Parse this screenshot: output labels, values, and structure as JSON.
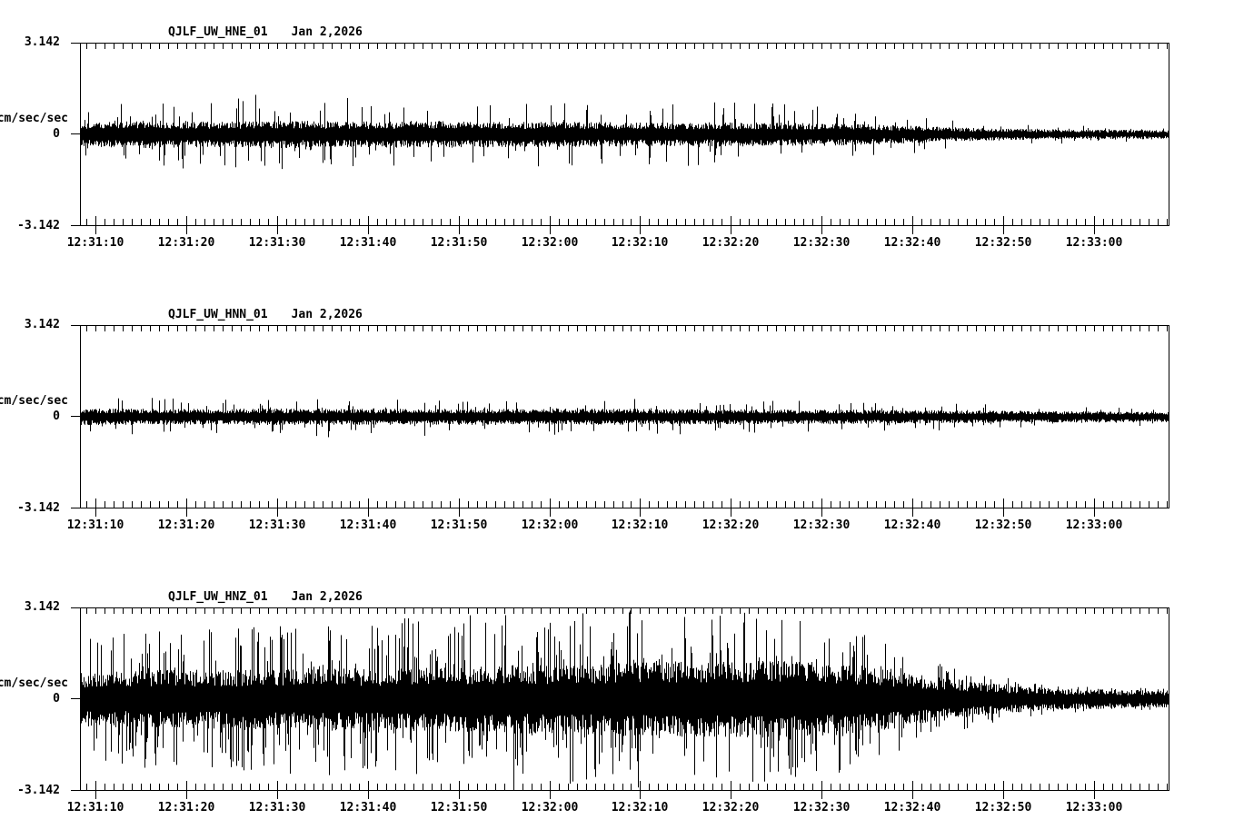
{
  "page": {
    "background": "#ffffff",
    "ink": "#000000"
  },
  "chart_data": {
    "type": "line",
    "kind": "seismogram-multitrace",
    "grid": false,
    "legend": "none",
    "y_axis": {
      "label": "cm/sec/sec",
      "max_label": "3.142",
      "zero_label": "0",
      "min_label": "-3.142",
      "ylim": [
        -3.142,
        3.142
      ]
    },
    "x_axis": {
      "tick_labels": [
        "12:31:10",
        "12:31:20",
        "12:31:30",
        "12:31:40",
        "12:31:50",
        "12:32:00",
        "12:32:10",
        "12:32:20",
        "12:32:30",
        "12:32:40",
        "12:32:50",
        "12:33:00"
      ],
      "first_tick_offset_s": 1.7,
      "major_interval_s": 10,
      "minor_interval_s": 1,
      "minor_start_offset_s": 0.7,
      "duration_s": 120
    },
    "traces": [
      {
        "title": "QJLF_UW_HNE_01",
        "date": "Jan 2,2026",
        "station": "QJLF",
        "network": "UW",
        "channel": "HNE",
        "location": "01",
        "seed": 101,
        "spike_probability": 0.08,
        "envelope_body": [
          [
            0,
            0.33
          ],
          [
            8,
            0.37
          ],
          [
            16,
            0.34
          ],
          [
            22,
            0.37
          ],
          [
            30,
            0.34
          ],
          [
            38,
            0.36
          ],
          [
            46,
            0.34
          ],
          [
            56,
            0.33
          ],
          [
            66,
            0.32
          ],
          [
            76,
            0.32
          ],
          [
            84,
            0.29
          ],
          [
            90,
            0.24
          ],
          [
            96,
            0.19
          ],
          [
            102,
            0.15
          ],
          [
            108,
            0.13
          ],
          [
            114,
            0.12
          ],
          [
            120,
            0.11
          ]
        ],
        "envelope_peak": [
          [
            0,
            0.95
          ],
          [
            10,
            1.2
          ],
          [
            19,
            1.45
          ],
          [
            24,
            1.1
          ],
          [
            31,
            1.35
          ],
          [
            40,
            1.1
          ],
          [
            50,
            1.15
          ],
          [
            58,
            1.0
          ],
          [
            64,
            1.05
          ],
          [
            72,
            1.15
          ],
          [
            80,
            1.0
          ],
          [
            88,
            0.8
          ],
          [
            95,
            0.55
          ],
          [
            102,
            0.4
          ],
          [
            110,
            0.3
          ],
          [
            120,
            0.22
          ]
        ]
      },
      {
        "title": "QJLF_UW_HNN_01",
        "date": "Jan 2,2026",
        "station": "QJLF",
        "network": "UW",
        "channel": "HNN",
        "location": "01",
        "seed": 202,
        "spike_probability": 0.08,
        "envelope_body": [
          [
            0,
            0.22
          ],
          [
            12,
            0.21
          ],
          [
            24,
            0.22
          ],
          [
            36,
            0.21
          ],
          [
            48,
            0.22
          ],
          [
            60,
            0.21
          ],
          [
            72,
            0.2
          ],
          [
            84,
            0.19
          ],
          [
            96,
            0.17
          ],
          [
            108,
            0.15
          ],
          [
            120,
            0.13
          ]
        ],
        "envelope_peak": [
          [
            0,
            0.62
          ],
          [
            15,
            0.68
          ],
          [
            30,
            0.72
          ],
          [
            45,
            0.65
          ],
          [
            60,
            0.62
          ],
          [
            75,
            0.58
          ],
          [
            90,
            0.5
          ],
          [
            105,
            0.4
          ],
          [
            120,
            0.3
          ]
        ]
      },
      {
        "title": "QJLF_UW_HNZ_01",
        "date": "Jan 2,2026",
        "station": "QJLF",
        "network": "UW",
        "channel": "HNZ",
        "location": "01",
        "seed": 303,
        "spike_probability": 0.2,
        "envelope_body": [
          [
            0,
            0.72
          ],
          [
            10,
            0.78
          ],
          [
            20,
            0.8
          ],
          [
            30,
            0.82
          ],
          [
            40,
            0.86
          ],
          [
            50,
            0.92
          ],
          [
            60,
            0.98
          ],
          [
            70,
            1.02
          ],
          [
            78,
            1.02
          ],
          [
            84,
            0.96
          ],
          [
            88,
            0.85
          ],
          [
            92,
            0.68
          ],
          [
            96,
            0.52
          ],
          [
            100,
            0.42
          ],
          [
            104,
            0.34
          ],
          [
            108,
            0.28
          ],
          [
            114,
            0.25
          ],
          [
            120,
            0.23
          ]
        ],
        "envelope_peak": [
          [
            0,
            2.2
          ],
          [
            8,
            2.5
          ],
          [
            16,
            2.4
          ],
          [
            24,
            2.6
          ],
          [
            32,
            2.7
          ],
          [
            40,
            2.9
          ],
          [
            48,
            3.0
          ],
          [
            56,
            3.1
          ],
          [
            64,
            3.1
          ],
          [
            70,
            3.05
          ],
          [
            76,
            2.95
          ],
          [
            82,
            2.7
          ],
          [
            86,
            2.3
          ],
          [
            90,
            1.9
          ],
          [
            94,
            1.4
          ],
          [
            98,
            1.0
          ],
          [
            102,
            0.75
          ],
          [
            106,
            0.55
          ],
          [
            112,
            0.45
          ],
          [
            120,
            0.35
          ]
        ]
      }
    ]
  }
}
